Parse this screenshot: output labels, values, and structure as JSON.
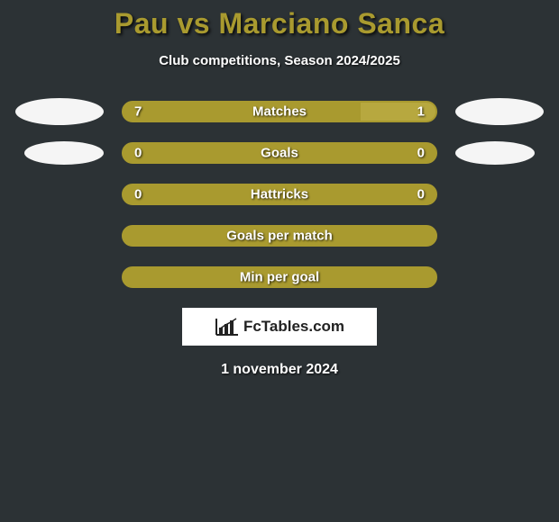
{
  "title": {
    "player1": "Pau",
    "vs": "vs",
    "player2": "Marciano Sanca",
    "color": "#a99a2f"
  },
  "subtitle": "Club competitions, Season 2024/2025",
  "colors": {
    "background": "#2c3235",
    "bar_fill": "#a99a2f",
    "bar_border": "#a99a2f",
    "bar_alt_fill": "#b7a83f",
    "avatar": "#f5f5f5",
    "text": "#ffffff"
  },
  "rows": [
    {
      "label": "Matches",
      "left_value": "7",
      "right_value": "1",
      "left_pct": 76,
      "right_pct": 24,
      "show_avatars": true,
      "avatar_small": false
    },
    {
      "label": "Goals",
      "left_value": "0",
      "right_value": "0",
      "left_pct": 100,
      "right_pct": 0,
      "show_avatars": true,
      "avatar_small": true
    },
    {
      "label": "Hattricks",
      "left_value": "0",
      "right_value": "0",
      "left_pct": 100,
      "right_pct": 0,
      "show_avatars": false
    },
    {
      "label": "Goals per match",
      "left_value": "",
      "right_value": "",
      "left_pct": 100,
      "right_pct": 0,
      "show_avatars": false
    },
    {
      "label": "Min per goal",
      "left_value": "",
      "right_value": "",
      "left_pct": 100,
      "right_pct": 0,
      "show_avatars": false
    }
  ],
  "logo_text": "FcTables.com",
  "date": "1 november 2024"
}
